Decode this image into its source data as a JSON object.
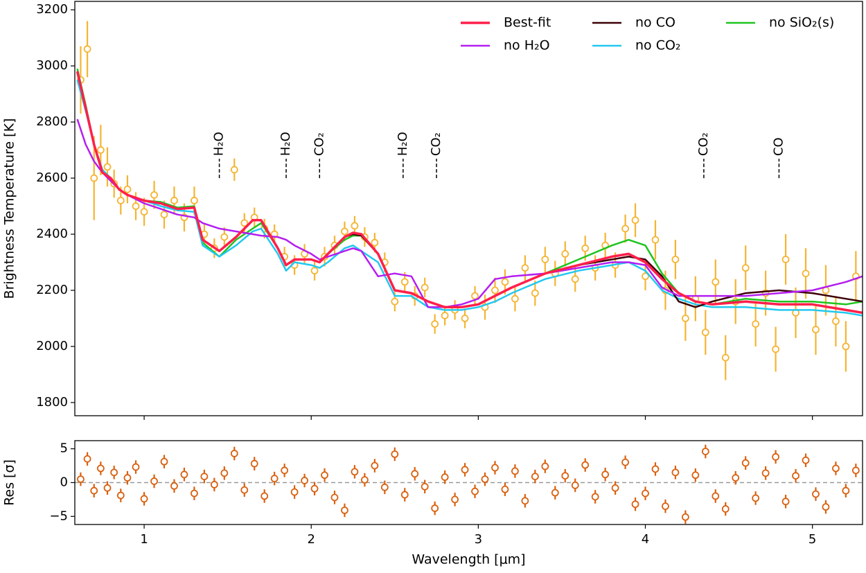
{
  "chart_data": [
    {
      "type": "line",
      "ylabel": "Brightness Temperature [K]",
      "xlim": [
        0.585,
        5.3
      ],
      "ylim": [
        1753,
        3230
      ],
      "xticks": [
        1,
        2,
        3,
        4,
        5
      ],
      "yticks": [
        1800,
        2000,
        2200,
        2400,
        2600,
        2800,
        3000,
        3200
      ],
      "legend": "upper right",
      "legend_columns": 3,
      "x": [
        0.6,
        0.65,
        0.7,
        0.75,
        0.8,
        0.85,
        0.9,
        1.0,
        1.1,
        1.2,
        1.3,
        1.35,
        1.45,
        1.55,
        1.65,
        1.7,
        1.8,
        1.85,
        1.9,
        2.0,
        2.05,
        2.1,
        2.2,
        2.25,
        2.3,
        2.4,
        2.5,
        2.6,
        2.7,
        2.8,
        2.9,
        3.0,
        3.1,
        3.2,
        3.4,
        3.6,
        3.8,
        3.9,
        4.0,
        4.1,
        4.2,
        4.3,
        4.4,
        4.6,
        4.8,
        5.0,
        5.2,
        5.3
      ],
      "series": [
        {
          "name": "Best-fit",
          "color": "#ff1f4b",
          "linewidth": 3.5,
          "values": [
            2980,
            2850,
            2720,
            2620,
            2600,
            2560,
            2540,
            2520,
            2510,
            2490,
            2495,
            2380,
            2340,
            2390,
            2450,
            2450,
            2350,
            2290,
            2310,
            2310,
            2300,
            2330,
            2390,
            2405,
            2400,
            2330,
            2200,
            2190,
            2160,
            2140,
            2140,
            2150,
            2180,
            2210,
            2260,
            2290,
            2320,
            2330,
            2300,
            2240,
            2190,
            2160,
            2150,
            2160,
            2150,
            2150,
            2130,
            2120
          ]
        },
        {
          "name": "no H₂O",
          "color": "#b41ef0",
          "linewidth": 2.5,
          "values": [
            2810,
            2720,
            2660,
            2620,
            2590,
            2560,
            2540,
            2510,
            2490,
            2470,
            2460,
            2440,
            2420,
            2410,
            2400,
            2395,
            2390,
            2380,
            2360,
            2330,
            2310,
            2320,
            2340,
            2350,
            2340,
            2250,
            2260,
            2250,
            2140,
            2140,
            2150,
            2170,
            2240,
            2250,
            2260,
            2280,
            2300,
            2300,
            2290,
            2210,
            2180,
            2180,
            2180,
            2180,
            2190,
            2200,
            2230,
            2250
          ]
        },
        {
          "name": "no CO",
          "color": "#3b0006",
          "linewidth": 2.5,
          "values": [
            2980,
            2850,
            2720,
            2620,
            2600,
            2560,
            2540,
            2520,
            2510,
            2490,
            2495,
            2380,
            2340,
            2390,
            2450,
            2450,
            2350,
            2290,
            2310,
            2310,
            2300,
            2330,
            2390,
            2400,
            2395,
            2330,
            2200,
            2190,
            2160,
            2140,
            2140,
            2150,
            2180,
            2210,
            2260,
            2290,
            2310,
            2320,
            2310,
            2250,
            2160,
            2140,
            2160,
            2190,
            2200,
            2190,
            2170,
            2160
          ]
        },
        {
          "name": "no CO₂",
          "color": "#22c8f0",
          "linewidth": 2.5,
          "values": [
            2950,
            2840,
            2720,
            2630,
            2600,
            2560,
            2540,
            2520,
            2500,
            2485,
            2480,
            2360,
            2320,
            2360,
            2410,
            2420,
            2330,
            2270,
            2300,
            2290,
            2280,
            2300,
            2350,
            2360,
            2340,
            2300,
            2180,
            2180,
            2140,
            2130,
            2130,
            2140,
            2160,
            2190,
            2240,
            2270,
            2290,
            2300,
            2270,
            2200,
            2170,
            2150,
            2140,
            2140,
            2130,
            2130,
            2120,
            2110
          ]
        },
        {
          "name": "no SiO₂(s)",
          "color": "#1ec41e",
          "linewidth": 2.5,
          "values": [
            2990,
            2860,
            2720,
            2620,
            2600,
            2560,
            2540,
            2520,
            2515,
            2495,
            2500,
            2370,
            2320,
            2380,
            2420,
            2440,
            2350,
            2290,
            2310,
            2310,
            2300,
            2330,
            2380,
            2395,
            2395,
            2330,
            2200,
            2190,
            2160,
            2140,
            2140,
            2150,
            2180,
            2210,
            2260,
            2310,
            2360,
            2380,
            2360,
            2260,
            2190,
            2160,
            2150,
            2170,
            2160,
            2160,
            2150,
            2160
          ]
        }
      ],
      "data_points": {
        "color": "#f5b431",
        "x": [
          0.62,
          0.66,
          0.7,
          0.74,
          0.78,
          0.82,
          0.86,
          0.9,
          0.95,
          1.0,
          1.06,
          1.12,
          1.18,
          1.24,
          1.3,
          1.36,
          1.42,
          1.48,
          1.54,
          1.6,
          1.66,
          1.72,
          1.78,
          1.84,
          1.9,
          1.96,
          2.02,
          2.08,
          2.14,
          2.2,
          2.26,
          2.32,
          2.38,
          2.44,
          2.5,
          2.56,
          2.62,
          2.68,
          2.74,
          2.8,
          2.86,
          2.92,
          2.98,
          3.04,
          3.1,
          3.16,
          3.22,
          3.28,
          3.34,
          3.4,
          3.46,
          3.52,
          3.58,
          3.64,
          3.7,
          3.76,
          3.82,
          3.88,
          3.94,
          4.0,
          4.06,
          4.12,
          4.18,
          4.24,
          4.3,
          4.36,
          4.42,
          4.48,
          4.54,
          4.6,
          4.66,
          4.72,
          4.78,
          4.84,
          4.9,
          4.96,
          5.02,
          5.08,
          5.14,
          5.2,
          5.26
        ],
        "values": [
          2950,
          3060,
          2600,
          2700,
          2640,
          2580,
          2520,
          2560,
          2500,
          2480,
          2540,
          2470,
          2520,
          2460,
          2520,
          2400,
          2350,
          2390,
          2630,
          2440,
          2460,
          2420,
          2400,
          2320,
          2290,
          2330,
          2270,
          2320,
          2360,
          2410,
          2430,
          2390,
          2370,
          2300,
          2160,
          2230,
          2180,
          2210,
          2080,
          2110,
          2130,
          2100,
          2180,
          2140,
          2200,
          2230,
          2170,
          2280,
          2190,
          2310,
          2260,
          2330,
          2240,
          2350,
          2280,
          2360,
          2290,
          2420,
          2450,
          2250,
          2380,
          2200,
          2310,
          2100,
          2170,
          2050,
          2230,
          1960,
          2160,
          2280,
          2080,
          2190,
          1990,
          2310,
          2120,
          2260,
          2060,
          2200,
          2090,
          2000,
          2250
        ],
        "errors": [
          120,
          100,
          150,
          90,
          70,
          50,
          50,
          50,
          50,
          50,
          50,
          50,
          50,
          50,
          50,
          35,
          35,
          35,
          40,
          35,
          35,
          35,
          35,
          35,
          35,
          35,
          35,
          35,
          35,
          35,
          35,
          35,
          35,
          35,
          35,
          35,
          35,
          35,
          35,
          35,
          35,
          35,
          35,
          45,
          45,
          45,
          45,
          45,
          45,
          45,
          45,
          45,
          45,
          45,
          45,
          45,
          45,
          50,
          60,
          50,
          70,
          70,
          70,
          80,
          80,
          80,
          80,
          80,
          80,
          80,
          80,
          80,
          80,
          90,
          90,
          90,
          90,
          90,
          90,
          90,
          90
        ]
      },
      "annotations": [
        {
          "text": "H₂O",
          "x": 1.45,
          "y": 2600
        },
        {
          "text": "H₂O",
          "x": 1.85,
          "y": 2600
        },
        {
          "text": "CO₂",
          "x": 2.05,
          "y": 2600
        },
        {
          "text": "H₂O",
          "x": 2.55,
          "y": 2600
        },
        {
          "text": "CO₂",
          "x": 2.75,
          "y": 2600
        },
        {
          "text": "CO₂",
          "x": 4.35,
          "y": 2600
        },
        {
          "text": "CO",
          "x": 4.8,
          "y": 2600
        }
      ]
    },
    {
      "type": "scatter",
      "xlabel": "Wavelength [μm]",
      "ylabel": "Res [σ]",
      "xlim": [
        0.585,
        5.3
      ],
      "ylim": [
        -6.2,
        6.2
      ],
      "xticks": [
        1,
        2,
        3,
        4,
        5
      ],
      "yticks": [
        {
          "value": -5,
          "label": "−5"
        },
        0,
        5
      ],
      "hline": 0,
      "color": "#d9600e",
      "x": [
        0.62,
        0.66,
        0.7,
        0.74,
        0.78,
        0.82,
        0.86,
        0.9,
        0.95,
        1.0,
        1.06,
        1.12,
        1.18,
        1.24,
        1.3,
        1.36,
        1.42,
        1.48,
        1.54,
        1.6,
        1.66,
        1.72,
        1.78,
        1.84,
        1.9,
        1.96,
        2.02,
        2.08,
        2.14,
        2.2,
        2.26,
        2.32,
        2.38,
        2.44,
        2.5,
        2.56,
        2.62,
        2.68,
        2.74,
        2.8,
        2.86,
        2.92,
        2.98,
        3.04,
        3.1,
        3.16,
        3.22,
        3.28,
        3.34,
        3.4,
        3.46,
        3.52,
        3.58,
        3.64,
        3.7,
        3.76,
        3.82,
        3.88,
        3.94,
        4.0,
        4.06,
        4.12,
        4.18,
        4.24,
        4.3,
        4.36,
        4.42,
        4.48,
        4.54,
        4.6,
        4.66,
        4.72,
        4.78,
        4.84,
        4.9,
        4.96,
        5.02,
        5.08,
        5.14,
        5.2,
        5.26
      ],
      "values": [
        0.5,
        3.5,
        -1.2,
        2.1,
        -0.8,
        1.5,
        -1.9,
        0.7,
        2.3,
        -2.4,
        0.2,
        3.1,
        -0.5,
        1.2,
        -1.6,
        0.9,
        -0.3,
        1.4,
        4.3,
        -1.1,
        2.8,
        -2.0,
        0.6,
        1.8,
        -1.4,
        0.3,
        -0.9,
        1.1,
        -2.2,
        -4.1,
        1.6,
        0.4,
        2.5,
        -0.7,
        4.2,
        -1.8,
        1.3,
        -0.6,
        -3.8,
        0.8,
        -2.5,
        1.9,
        -1.3,
        0.5,
        2.2,
        -1.0,
        1.7,
        -2.7,
        0.9,
        2.4,
        -1.5,
        1.0,
        -0.4,
        2.6,
        -2.1,
        1.2,
        -0.8,
        3.0,
        -3.2,
        -1.6,
        2.0,
        -3.5,
        1.5,
        -5.1,
        1.1,
        4.6,
        -2.0,
        -3.9,
        0.7,
        2.9,
        -2.3,
        1.4,
        3.8,
        -2.8,
        1.0,
        3.3,
        -1.7,
        -3.6,
        2.1,
        -1.2,
        1.8
      ],
      "errors": [
        1,
        1,
        1,
        1,
        1,
        1,
        1,
        1,
        1,
        1,
        1,
        1,
        1,
        1,
        1,
        1,
        1,
        1,
        1,
        1,
        1,
        1,
        1,
        1,
        1,
        1,
        1,
        1,
        1,
        1,
        1,
        1,
        1,
        1,
        1,
        1,
        1,
        1,
        1,
        1,
        1,
        1,
        1,
        1,
        1,
        1,
        1,
        1,
        1,
        1,
        1,
        1,
        1,
        1,
        1,
        1,
        1,
        1,
        1,
        1,
        1,
        1,
        1,
        1,
        1,
        1,
        1,
        1,
        1,
        1,
        1,
        1,
        1,
        1,
        1,
        1,
        1,
        1,
        1,
        1,
        1
      ]
    }
  ]
}
